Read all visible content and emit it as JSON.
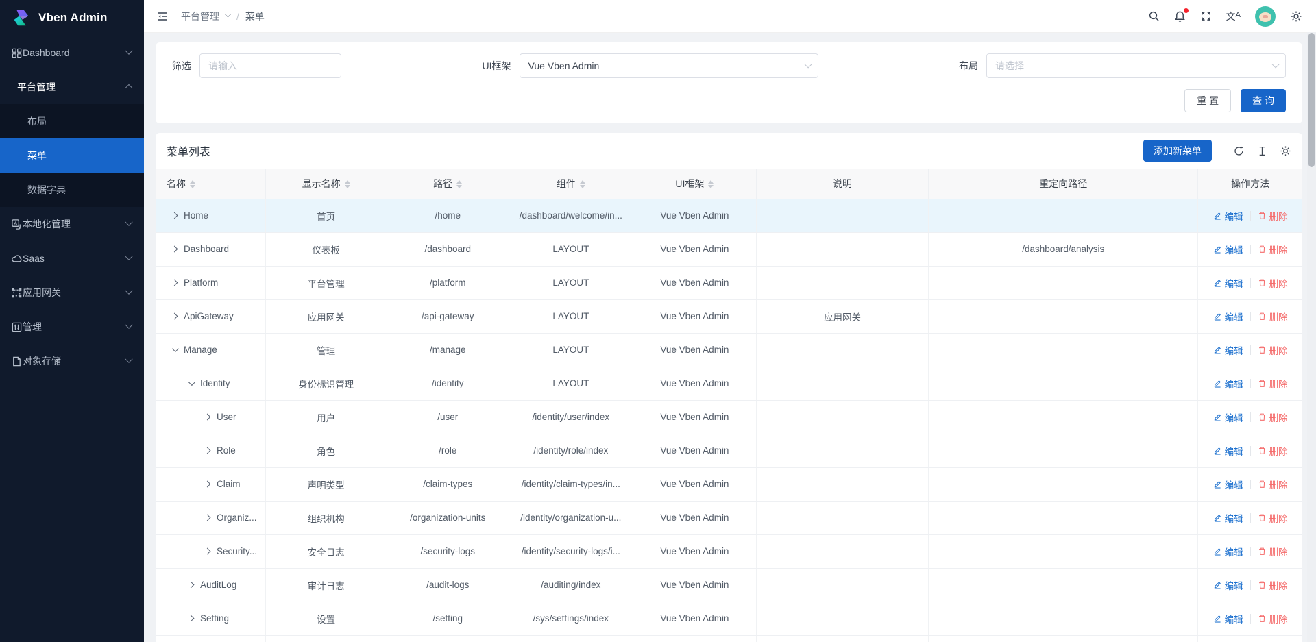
{
  "app": {
    "title": "Vben Admin"
  },
  "colors": {
    "primary": "#1765c9",
    "sidebar_bg": "#101a2c",
    "submenu_bg": "#0c1423",
    "active_item": "#1765c9",
    "row_highlight": "#e9f5fc",
    "edit_link": "#1b6fce",
    "delete_link": "#f56c6c",
    "notification_dot": "#f5222d",
    "avatar_bg": "#3fc1ae"
  },
  "sidebar": {
    "logo_title": "Vben Admin",
    "items": [
      {
        "type": "item",
        "icon": "dashboard-grid",
        "label": "Dashboard",
        "chevron": "down"
      },
      {
        "type": "group",
        "icon": "",
        "label": "平台管理",
        "chevron": "up",
        "children": [
          {
            "label": "布局",
            "active": false
          },
          {
            "label": "菜单",
            "active": true
          },
          {
            "label": "数据字典",
            "active": false
          }
        ]
      },
      {
        "type": "item",
        "icon": "localization",
        "label": "本地化管理",
        "chevron": "down"
      },
      {
        "type": "item",
        "icon": "cloud",
        "label": "Saas",
        "chevron": "down"
      },
      {
        "type": "item",
        "icon": "gateway",
        "label": "应用网关",
        "chevron": "down"
      },
      {
        "type": "item",
        "icon": "manage",
        "label": "管理",
        "chevron": "down"
      },
      {
        "type": "item",
        "icon": "storage",
        "label": "对象存储",
        "chevron": "down"
      }
    ]
  },
  "header": {
    "breadcrumb": {
      "parent": "平台管理",
      "separator": "/",
      "current": "菜单"
    },
    "icons": [
      "collapse-sidebar",
      "search",
      "bell",
      "fullscreen",
      "translate",
      "avatar",
      "settings"
    ],
    "has_notification_dot": true,
    "translate_glyph": "文A"
  },
  "filter": {
    "fields": [
      {
        "label": "筛选",
        "type": "input",
        "placeholder": "请输入",
        "value": ""
      },
      {
        "label": "UI框架",
        "type": "select",
        "value": "Vue Vben Admin"
      },
      {
        "label": "布局",
        "type": "select",
        "placeholder": "请选择",
        "value": ""
      }
    ],
    "reset_label": "重 置",
    "search_label": "查 询"
  },
  "table": {
    "title": "菜单列表",
    "add_button": "添加新菜单",
    "toolbar_icons": [
      "refresh",
      "row-height",
      "settings"
    ],
    "columns": [
      {
        "label": "名称",
        "sortable": true,
        "align": "left"
      },
      {
        "label": "显示名称",
        "sortable": true,
        "align": "center"
      },
      {
        "label": "路径",
        "sortable": true,
        "align": "center"
      },
      {
        "label": "组件",
        "sortable": true,
        "align": "center"
      },
      {
        "label": "UI框架",
        "sortable": true,
        "align": "center"
      },
      {
        "label": "说明",
        "sortable": false,
        "align": "center"
      },
      {
        "label": "重定向路径",
        "sortable": false,
        "align": "center"
      },
      {
        "label": "操作方法",
        "sortable": false,
        "align": "center"
      }
    ],
    "actions": {
      "edit": "编辑",
      "delete": "删除"
    },
    "rows": [
      {
        "name": "Home",
        "level": 1,
        "state": "collapsed",
        "display_name": "首页",
        "path": "/home",
        "component": "/dashboard/welcome/in...",
        "framework": "Vue Vben Admin",
        "description": "",
        "redirect": "",
        "highlighted": true,
        "partial": false
      },
      {
        "name": "Dashboard",
        "level": 1,
        "state": "collapsed",
        "display_name": "仪表板",
        "path": "/dashboard",
        "component": "LAYOUT",
        "framework": "Vue Vben Admin",
        "description": "",
        "redirect": "/dashboard/analysis",
        "highlighted": false,
        "partial": false
      },
      {
        "name": "Platform",
        "level": 1,
        "state": "collapsed",
        "display_name": "平台管理",
        "path": "/platform",
        "component": "LAYOUT",
        "framework": "Vue Vben Admin",
        "description": "",
        "redirect": "",
        "highlighted": false,
        "partial": false
      },
      {
        "name": "ApiGateway",
        "level": 1,
        "state": "collapsed",
        "display_name": "应用网关",
        "path": "/api-gateway",
        "component": "LAYOUT",
        "framework": "Vue Vben Admin",
        "description": "应用网关",
        "redirect": "",
        "highlighted": false,
        "partial": false
      },
      {
        "name": "Manage",
        "level": 1,
        "state": "expanded",
        "display_name": "管理",
        "path": "/manage",
        "component": "LAYOUT",
        "framework": "Vue Vben Admin",
        "description": "",
        "redirect": "",
        "highlighted": false,
        "partial": false
      },
      {
        "name": "Identity",
        "level": 2,
        "state": "expanded",
        "display_name": "身份标识管理",
        "path": "/identity",
        "component": "LAYOUT",
        "framework": "Vue Vben Admin",
        "description": "",
        "redirect": "",
        "highlighted": false,
        "partial": false
      },
      {
        "name": "User",
        "level": 3,
        "state": "collapsed",
        "display_name": "用户",
        "path": "/user",
        "component": "/identity/user/index",
        "framework": "Vue Vben Admin",
        "description": "",
        "redirect": "",
        "highlighted": false,
        "partial": false
      },
      {
        "name": "Role",
        "level": 3,
        "state": "collapsed",
        "display_name": "角色",
        "path": "/role",
        "component": "/identity/role/index",
        "framework": "Vue Vben Admin",
        "description": "",
        "redirect": "",
        "highlighted": false,
        "partial": false
      },
      {
        "name": "Claim",
        "level": 3,
        "state": "collapsed",
        "display_name": "声明类型",
        "path": "/claim-types",
        "component": "/identity/claim-types/in...",
        "framework": "Vue Vben Admin",
        "description": "",
        "redirect": "",
        "highlighted": false,
        "partial": false
      },
      {
        "name": "Organiz...",
        "level": 3,
        "state": "collapsed",
        "display_name": "组织机构",
        "path": "/organization-units",
        "component": "/identity/organization-u...",
        "framework": "Vue Vben Admin",
        "description": "",
        "redirect": "",
        "highlighted": false,
        "partial": false
      },
      {
        "name": "Security...",
        "level": 3,
        "state": "collapsed",
        "display_name": "安全日志",
        "path": "/security-logs",
        "component": "/identity/security-logs/i...",
        "framework": "Vue Vben Admin",
        "description": "",
        "redirect": "",
        "highlighted": false,
        "partial": false
      },
      {
        "name": "AuditLog",
        "level": 2,
        "state": "collapsed",
        "display_name": "审计日志",
        "path": "/audit-logs",
        "component": "/auditing/index",
        "framework": "Vue Vben Admin",
        "description": "",
        "redirect": "",
        "highlighted": false,
        "partial": false
      },
      {
        "name": "Setting",
        "level": 2,
        "state": "collapsed",
        "display_name": "设置",
        "path": "/setting",
        "component": "/sys/settings/index",
        "framework": "Vue Vben Admin",
        "description": "",
        "redirect": "",
        "highlighted": false,
        "partial": false
      },
      {
        "name": "",
        "level": 0,
        "state": "none",
        "display_name": "",
        "path": "",
        "component": "",
        "framework": "",
        "description": "",
        "redirect": "",
        "highlighted": false,
        "partial": true
      }
    ]
  }
}
